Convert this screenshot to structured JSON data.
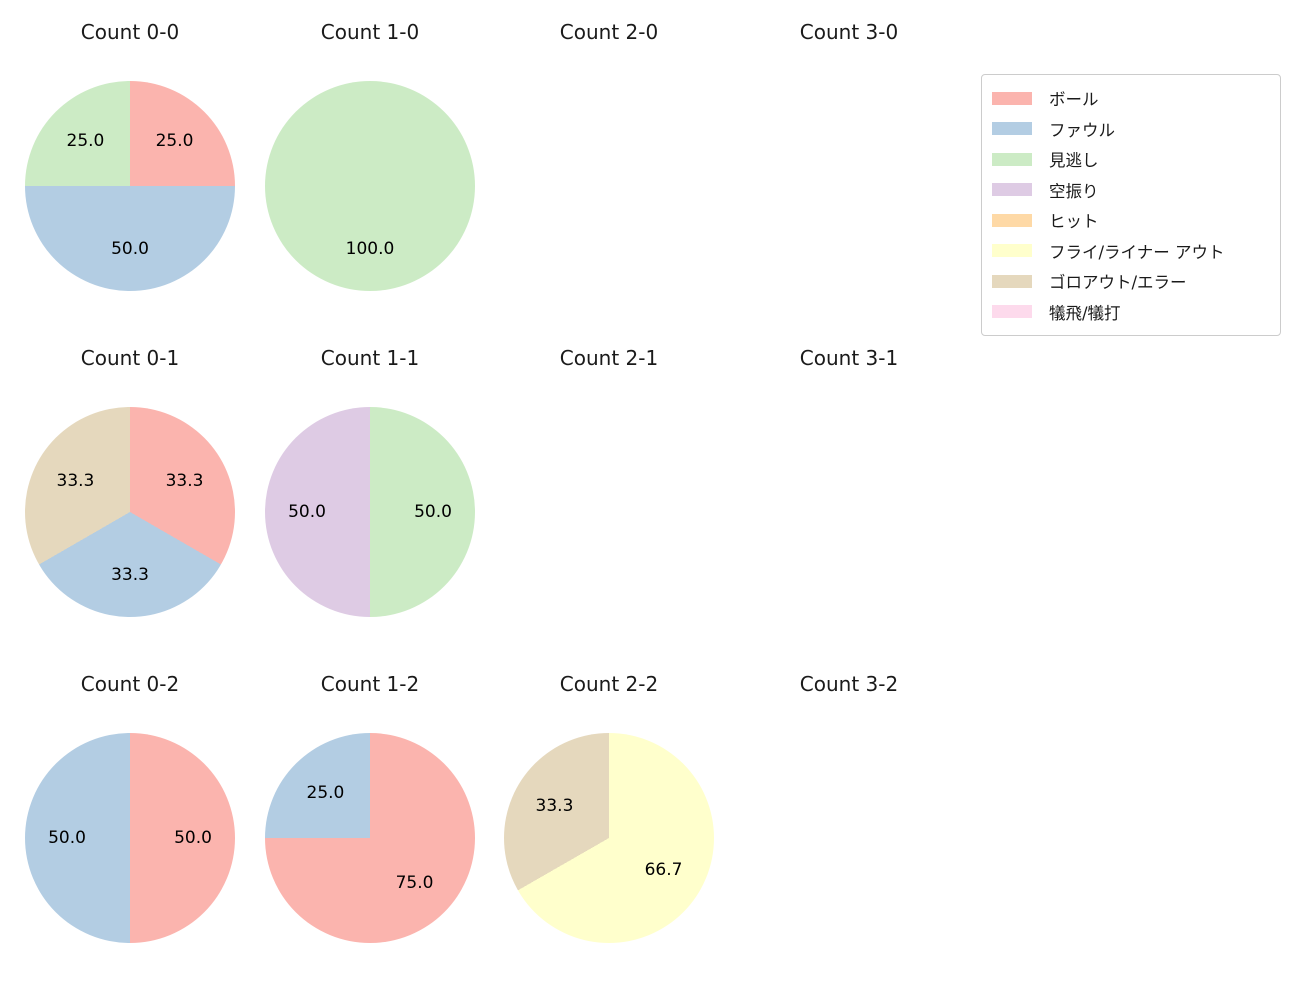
{
  "figure": {
    "background": "#ffffff"
  },
  "palette": {
    "ボール": "#fbb4ae",
    "ファウル": "#b3cde3",
    "見逃し": "#ccebc5",
    "空振り": "#decbe4",
    "ヒット": "#fed9a6",
    "フライ/ライナー アウト": "#ffffcc",
    "ゴロアウト/エラー": "#e5d8bd",
    "犠飛/犠打": "#fddaec"
  },
  "legend": {
    "items": [
      {
        "label": "ボール",
        "color": "#fbb4ae"
      },
      {
        "label": "ファウル",
        "color": "#b3cde3"
      },
      {
        "label": "見逃し",
        "color": "#ccebc5"
      },
      {
        "label": "空振り",
        "color": "#decbe4"
      },
      {
        "label": "ヒット",
        "color": "#fed9a6"
      },
      {
        "label": "フライ/ライナー アウト",
        "color": "#ffffcc"
      },
      {
        "label": "ゴロアウト/エラー",
        "color": "#e5d8bd"
      },
      {
        "label": "犠飛/犠打",
        "color": "#fddaec"
      }
    ]
  },
  "chart_data": [
    {
      "type": "pie",
      "title": "Count 0-0",
      "labels": [
        "ボール",
        "ファウル",
        "見逃し"
      ],
      "values": [
        25.0,
        50.0,
        25.0
      ],
      "start_angle": "12-oclock",
      "direction": "clockwise",
      "label_distance": 0.6
    },
    {
      "type": "pie",
      "title": "Count 1-0",
      "labels": [
        "見逃し"
      ],
      "values": [
        100.0
      ],
      "start_angle": "12-oclock",
      "direction": "clockwise",
      "label_distance": 0.6
    },
    {
      "type": "pie",
      "title": "Count 2-0",
      "labels": [],
      "values": []
    },
    {
      "type": "pie",
      "title": "Count 3-0",
      "labels": [],
      "values": []
    },
    {
      "type": "pie",
      "title": "Count 0-1",
      "labels": [
        "ボール",
        "ファウル",
        "ゴロアウト/エラー"
      ],
      "values": [
        33.3,
        33.3,
        33.3
      ],
      "start_angle": "12-oclock",
      "direction": "clockwise",
      "label_distance": 0.6
    },
    {
      "type": "pie",
      "title": "Count 1-1",
      "labels": [
        "見逃し",
        "空振り"
      ],
      "values": [
        50.0,
        50.0
      ],
      "start_angle": "12-oclock",
      "direction": "clockwise",
      "label_distance": 0.6
    },
    {
      "type": "pie",
      "title": "Count 2-1",
      "labels": [],
      "values": []
    },
    {
      "type": "pie",
      "title": "Count 3-1",
      "labels": [],
      "values": []
    },
    {
      "type": "pie",
      "title": "Count 0-2",
      "labels": [
        "ボール",
        "ファウル"
      ],
      "values": [
        50.0,
        50.0
      ],
      "start_angle": "12-oclock",
      "direction": "clockwise",
      "label_distance": 0.6
    },
    {
      "type": "pie",
      "title": "Count 1-2",
      "labels": [
        "ボール",
        "ファウル"
      ],
      "values": [
        75.0,
        25.0
      ],
      "start_angle": "12-oclock",
      "direction": "clockwise",
      "label_distance": 0.6
    },
    {
      "type": "pie",
      "title": "Count 2-2",
      "labels": [
        "フライ/ライナー アウト",
        "ゴロアウト/エラー"
      ],
      "values": [
        66.7,
        33.3
      ],
      "start_angle": "12-oclock",
      "direction": "clockwise",
      "label_distance": 0.6
    },
    {
      "type": "pie",
      "title": "Count 3-2",
      "labels": [],
      "values": []
    }
  ]
}
